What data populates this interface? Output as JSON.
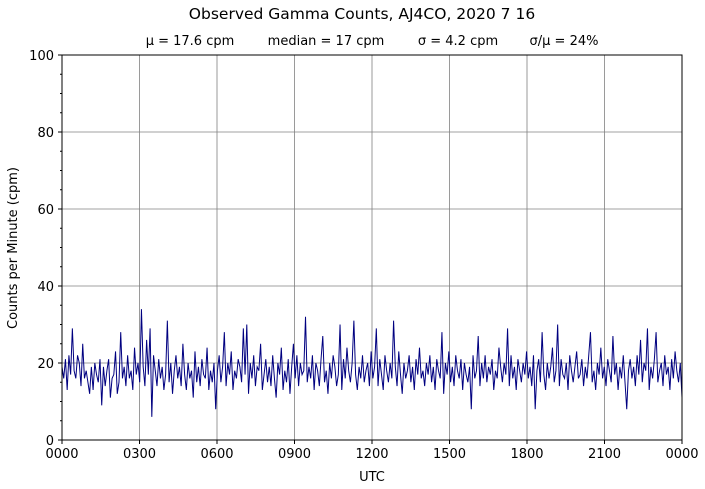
{
  "chart_data": {
    "type": "line",
    "title": "Observed Gamma Counts, AJ4CO, 2020 7 16",
    "subtitle": [
      "μ = 17.6 cpm",
      "median = 17 cpm",
      "σ = 4.2 cpm",
      "σ/μ = 24%"
    ],
    "xlabel": "UTC",
    "ylabel": "Counts per Minute (cpm)",
    "x_ticks": [
      "0000",
      "0300",
      "0600",
      "0900",
      "1200",
      "1500",
      "1800",
      "2100",
      "0000"
    ],
    "y_ticks": [
      0,
      20,
      40,
      60,
      80,
      100
    ],
    "ylim": [
      0,
      100
    ],
    "grid": true,
    "line_color": "#000080",
    "grid_color": "#808080",
    "series": [
      {
        "values": [
          19,
          16,
          21,
          13,
          22,
          17,
          29,
          18,
          16,
          22,
          20,
          14,
          25,
          16,
          18,
          15,
          12,
          19,
          13,
          20,
          17,
          15,
          21,
          9,
          19,
          14,
          18,
          21,
          11,
          16,
          17,
          23,
          12,
          15,
          28,
          16,
          19,
          14,
          22,
          16,
          18,
          13,
          24,
          17,
          20,
          15,
          34,
          19,
          14,
          26,
          17,
          29,
          6,
          22,
          18,
          14,
          21,
          16,
          19,
          13,
          17,
          31,
          15,
          20,
          12,
          18,
          22,
          16,
          19,
          14,
          25,
          17,
          13,
          20,
          16,
          18,
          11,
          23,
          15,
          19,
          14,
          21,
          17,
          16,
          24,
          13,
          18,
          15,
          20,
          8,
          18,
          22,
          15,
          19,
          28,
          14,
          20,
          17,
          23,
          13,
          18,
          16,
          21,
          19,
          15,
          29,
          17,
          30,
          12,
          20,
          16,
          22,
          14,
          19,
          18,
          25,
          13,
          17,
          21,
          15,
          19,
          14,
          22,
          16,
          11,
          20,
          17,
          24,
          13,
          18,
          15,
          21,
          12,
          19,
          25,
          16,
          22,
          14,
          20,
          17,
          18,
          32,
          15,
          19,
          16,
          22,
          13,
          20,
          18,
          14,
          21,
          27,
          15,
          18,
          12,
          20,
          16,
          22,
          19,
          14,
          17,
          30,
          13,
          21,
          16,
          24,
          18,
          15,
          20,
          31,
          17,
          13,
          19,
          16,
          22,
          15,
          18,
          20,
          14,
          23,
          16,
          19,
          29,
          14,
          21,
          17,
          13,
          22,
          18,
          15,
          20,
          16,
          31,
          19,
          14,
          23,
          17,
          12,
          20,
          16,
          18,
          22,
          15,
          19,
          13,
          21,
          17,
          24,
          16,
          18,
          14,
          20,
          17,
          22,
          15,
          19,
          13,
          21,
          18,
          16,
          28,
          12,
          20,
          17,
          23,
          15,
          19,
          14,
          22,
          18,
          16,
          21,
          13,
          20,
          17,
          15,
          19,
          8,
          22,
          16,
          18,
          27,
          14,
          20,
          16,
          22,
          15,
          19,
          17,
          21,
          13,
          18,
          16,
          24,
          19,
          15,
          20,
          17,
          29,
          14,
          22,
          16,
          19,
          13,
          21,
          18,
          15,
          20,
          17,
          23,
          16,
          19,
          14,
          22,
          8,
          18,
          21,
          15,
          28,
          17,
          13,
          20,
          16,
          19,
          24,
          15,
          18,
          30,
          14,
          21,
          17,
          16,
          20,
          13,
          22,
          18,
          15,
          19,
          23,
          16,
          17,
          21,
          14,
          19,
          16,
          22,
          28,
          15,
          18,
          13,
          20,
          17,
          24,
          16,
          19,
          14,
          21,
          18,
          15,
          27,
          17,
          20,
          13,
          19,
          16,
          22,
          15,
          8,
          18,
          21,
          16,
          19,
          14,
          22,
          17,
          26,
          15,
          20,
          18,
          29,
          13,
          19,
          16,
          21,
          28,
          15,
          18,
          20,
          14,
          22,
          17,
          19,
          13,
          21,
          16,
          23,
          18,
          15,
          20,
          11
        ]
      }
    ]
  }
}
